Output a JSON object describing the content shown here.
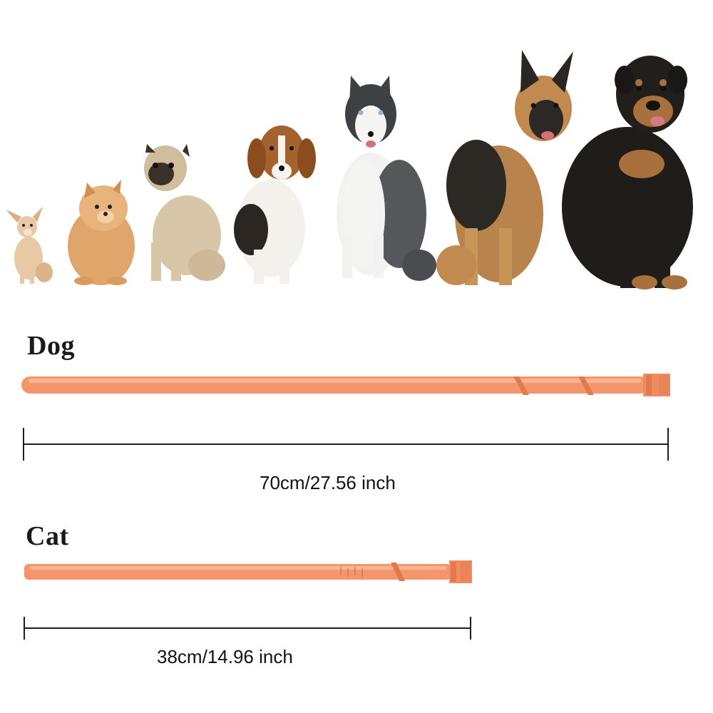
{
  "dog_section": {
    "label": "Dog",
    "size_label": "70cm/27.56 inch"
  },
  "cat_section": {
    "label": "Cat",
    "size_label": "38cm/14.96 inch"
  },
  "dogs": [
    {
      "breed": "chihuahua",
      "icon": "chihuahua-icon"
    },
    {
      "breed": "pomeranian",
      "icon": "pomeranian-icon"
    },
    {
      "breed": "pug",
      "icon": "pug-icon"
    },
    {
      "breed": "beagle",
      "icon": "beagle-icon"
    },
    {
      "breed": "husky",
      "icon": "husky-icon"
    },
    {
      "breed": "german shepherd",
      "icon": "german-shepherd-icon"
    },
    {
      "breed": "rottweiler",
      "icon": "rottweiler-icon"
    }
  ],
  "colors": {
    "collar": "#f4956b",
    "collar_highlight": "#f9b491",
    "collar_dark": "#e27a50",
    "ruler": "#1e1e1e"
  }
}
